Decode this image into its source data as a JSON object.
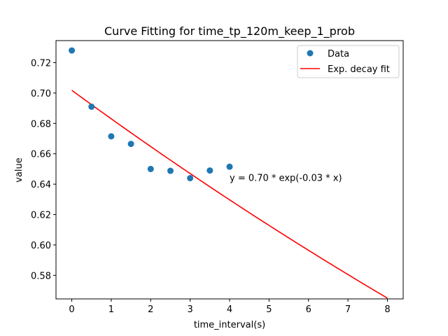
{
  "chart_data": {
    "type": "scatter",
    "title": "Curve Fitting for time_tp_120m_keep_1_prob",
    "xlabel": "time_interval(s)",
    "ylabel": "value",
    "xlim": [
      -0.4,
      8.4
    ],
    "ylim": [
      0.5645,
      0.7345
    ],
    "x_ticks": [
      0,
      1,
      2,
      3,
      4,
      5,
      6,
      7,
      8
    ],
    "y_ticks": [
      0.58,
      0.6,
      0.62,
      0.64,
      0.66,
      0.68,
      0.7,
      0.72
    ],
    "grid": false,
    "legend_position": "upper right",
    "series": [
      {
        "name": "Data",
        "kind": "scatter",
        "color": "#1f77b4",
        "x": [
          0,
          0.5,
          1,
          1.5,
          2,
          2.5,
          3,
          3.5,
          4
        ],
        "y": [
          0.728,
          0.691,
          0.6715,
          0.6665,
          0.65,
          0.6488,
          0.644,
          0.649,
          0.6515
        ]
      },
      {
        "name": "Exp. decay fit",
        "kind": "line",
        "color": "#ff0000",
        "model": {
          "a": 0.7018,
          "b": 0.0271
        },
        "x_range": [
          0,
          8
        ]
      }
    ],
    "annotation": {
      "text": "y = 0.70 * exp(-0.03 * x)",
      "x": 4,
      "y": 0.6445
    }
  }
}
